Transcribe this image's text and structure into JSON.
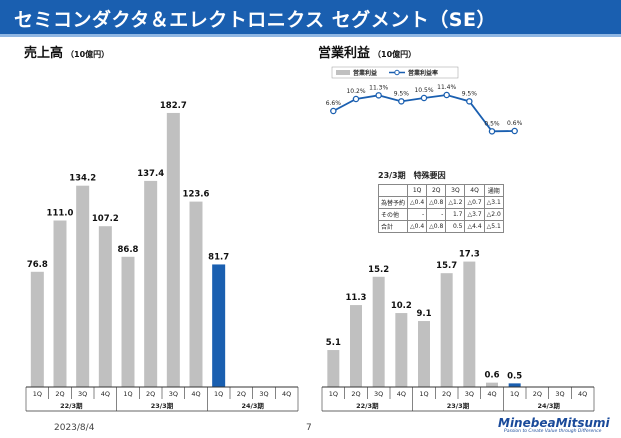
{
  "page": {
    "title": "セミコンダクタ＆エレクトロニクス セグメント（SE）",
    "date": "2023/8/4",
    "page_number": "7",
    "logo_name": "MinebeaMitsumi",
    "logo_tagline": "Passion to Create Value through Difference"
  },
  "colors": {
    "bar": "#c0c0c0",
    "highlight": "#1a5fb0",
    "line": "#1a5fb0",
    "title_bar": "#1a5fb0"
  },
  "sales": {
    "title": "売上高",
    "unit": "（10億円）"
  },
  "profit": {
    "title": "営業利益",
    "unit": "（10億円）"
  },
  "factors": {
    "title": "23/3期　特殊要因",
    "columns": [
      "",
      "1Q",
      "2Q",
      "3Q",
      "4Q",
      "通期"
    ],
    "rows": [
      [
        "為替予約",
        "△0.4",
        "△0.8",
        "△1.2",
        "△0.7",
        "△3.1"
      ],
      [
        "その他",
        "-",
        "-",
        "1.7",
        "△3.7",
        "△2.0"
      ],
      [
        "合計",
        "△0.4",
        "△0.8",
        "0.5",
        "△4.4",
        "△5.1"
      ]
    ]
  },
  "chart_data": [
    {
      "type": "bar",
      "title": "売上高",
      "ylabel": "（10億円）",
      "categories": [
        "1Q",
        "2Q",
        "3Q",
        "4Q",
        "1Q",
        "2Q",
        "3Q",
        "4Q",
        "1Q",
        "2Q",
        "3Q",
        "4Q"
      ],
      "groups": [
        {
          "label": "22/3期",
          "categories": [
            "1Q",
            "2Q",
            "3Q",
            "4Q"
          ]
        },
        {
          "label": "23/3期",
          "categories": [
            "1Q",
            "2Q",
            "3Q",
            "4Q"
          ]
        },
        {
          "label": "24/3期",
          "categories": [
            "1Q",
            "2Q",
            "3Q",
            "4Q"
          ]
        }
      ],
      "values": [
        76.8,
        111.0,
        134.2,
        107.2,
        86.8,
        137.4,
        182.7,
        123.6,
        81.7,
        null,
        null,
        null
      ],
      "value_labels": [
        "76.8",
        "111.0",
        "134.2",
        "107.2",
        "86.8",
        "137.4",
        "182.7",
        "123.6",
        "81.7",
        "",
        "",
        ""
      ],
      "highlight_index": 8,
      "ylim": [
        0,
        200
      ]
    },
    {
      "type": "bar",
      "title": "営業利益",
      "ylabel": "（10億円）",
      "categories": [
        "1Q",
        "2Q",
        "3Q",
        "4Q",
        "1Q",
        "2Q",
        "3Q",
        "4Q",
        "1Q",
        "2Q",
        "3Q",
        "4Q"
      ],
      "groups": [
        {
          "label": "22/3期",
          "categories": [
            "1Q",
            "2Q",
            "3Q",
            "4Q"
          ]
        },
        {
          "label": "23/3期",
          "categories": [
            "1Q",
            "2Q",
            "3Q",
            "4Q"
          ]
        },
        {
          "label": "24/3期",
          "categories": [
            "1Q",
            "2Q",
            "3Q",
            "4Q"
          ]
        }
      ],
      "series": [
        {
          "name": "営業利益",
          "values": [
            5.1,
            11.3,
            15.2,
            10.2,
            9.1,
            15.7,
            17.3,
            0.6,
            0.5,
            null,
            null,
            null
          ],
          "value_labels": [
            "5.1",
            "11.3",
            "15.2",
            "10.2",
            "9.1",
            "15.7",
            "17.3",
            "0.6",
            "0.5",
            "",
            "",
            ""
          ]
        }
      ],
      "highlight_index": 8,
      "ylim": [
        0,
        20
      ]
    },
    {
      "type": "line",
      "title": "営業利益率",
      "categories": [
        "1Q",
        "2Q",
        "3Q",
        "4Q",
        "1Q",
        "2Q",
        "3Q",
        "4Q",
        "1Q"
      ],
      "series": [
        {
          "name": "営業利益率",
          "values": [
            6.6,
            10.2,
            11.3,
            9.5,
            10.5,
            11.4,
            9.5,
            0.5,
            0.6
          ],
          "value_labels": [
            "6.6%",
            "10.2%",
            "11.3%",
            "9.5%",
            "10.5%",
            "11.4%",
            "9.5%",
            "0.5%",
            "0.6%"
          ]
        }
      ],
      "ylim": [
        0,
        12
      ]
    }
  ]
}
